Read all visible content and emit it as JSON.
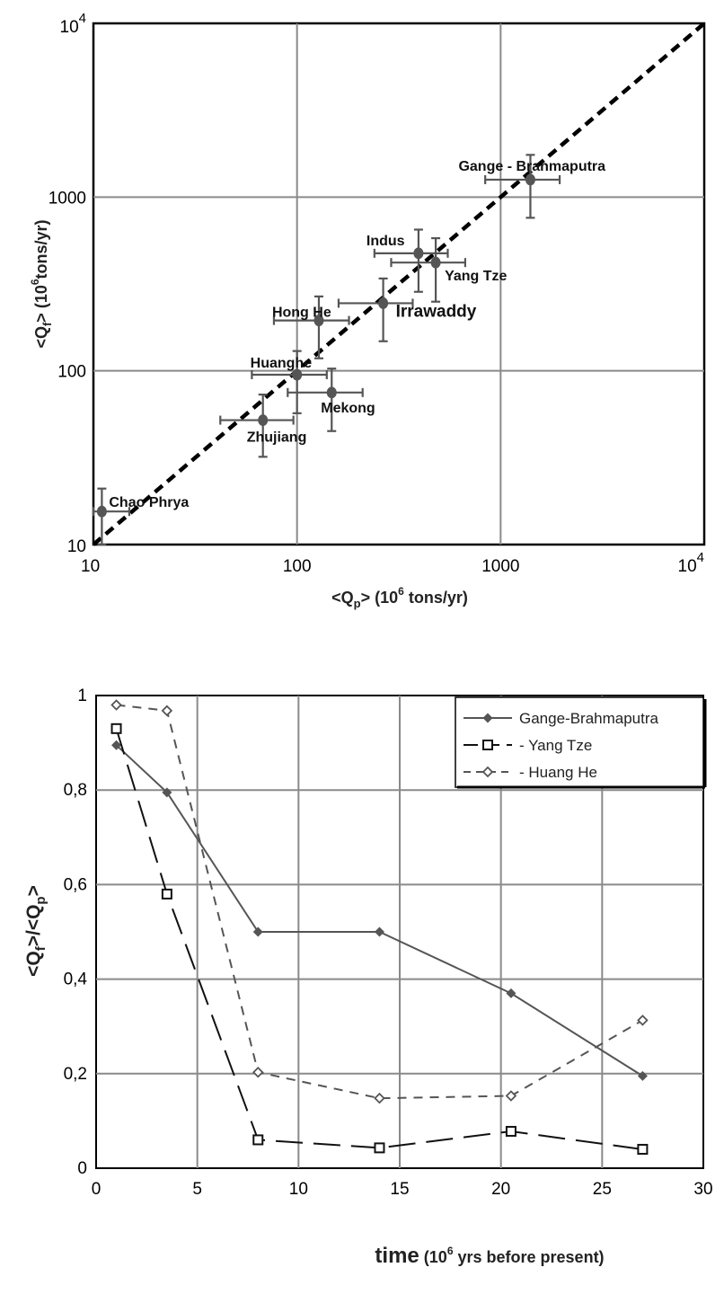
{
  "chart_data": [
    {
      "type": "scatter",
      "title": "",
      "xlabel": {
        "prefix": "<Q",
        "sub": "p",
        "mid": ">  (10",
        "sup": "6",
        "suffix": " tons/yr)"
      },
      "ylabel": {
        "prefix": "<Q",
        "sub": "f",
        "mid": ">  (10",
        "sup": "6",
        "suffix": "tons/yr)"
      },
      "xscale": "log",
      "yscale": "log",
      "xlim": [
        10,
        10000
      ],
      "ylim": [
        10,
        10000
      ],
      "grid": true,
      "x_ticks": [
        {
          "text": "10"
        },
        {
          "text": "100"
        },
        {
          "text": "1000"
        },
        {
          "text": "10",
          "sup": "4"
        }
      ],
      "y_ticks": [
        {
          "text": "10"
        },
        {
          "text": "100"
        },
        {
          "text": "1000"
        },
        {
          "text": "10",
          "sup": "4"
        }
      ],
      "reference_line": "y = x (dashed)",
      "points": [
        {
          "label": "Chao Phrya",
          "x": 11,
          "y": 15.5,
          "xerr": [
            10,
            15
          ],
          "yerr": [
            10,
            21
          ]
        },
        {
          "label": "Zhujiang",
          "x": 68,
          "y": 52,
          "xerr": [
            42,
            96
          ],
          "yerr": [
            32,
            73
          ]
        },
        {
          "label": "Huanghe",
          "x": 100,
          "y": 95,
          "xerr": [
            60,
            140
          ],
          "yerr": [
            57,
            130
          ]
        },
        {
          "label": "Mekong",
          "x": 148,
          "y": 75,
          "xerr": [
            90,
            210
          ],
          "yerr": [
            45,
            103
          ]
        },
        {
          "label": "Hong He",
          "x": 128,
          "y": 195,
          "xerr": [
            77,
            180
          ],
          "yerr": [
            118,
            268
          ]
        },
        {
          "label": "Irrawaddy",
          "x": 265,
          "y": 245,
          "xerr": [
            160,
            370
          ],
          "yerr": [
            148,
            340
          ]
        },
        {
          "label": "Indus",
          "x": 395,
          "y": 475,
          "xerr": [
            240,
            550
          ],
          "yerr": [
            285,
            650
          ]
        },
        {
          "label": "Yang Tze",
          "x": 480,
          "y": 420,
          "xerr": [
            290,
            670
          ],
          "yerr": [
            250,
            580
          ]
        },
        {
          "label": "Gange - Brahmaputra",
          "x": 1400,
          "y": 1260,
          "xerr": [
            840,
            1950
          ],
          "yerr": [
            760,
            1750
          ]
        }
      ]
    },
    {
      "type": "line",
      "title": "",
      "xlabel": {
        "main": "time",
        "small": " (10",
        "sup": "6",
        "suffix": " yrs before present)"
      },
      "ylabel": {
        "prefix": "<Q",
        "sub1": "f",
        "mid": ">/<Q",
        "sub2": "p",
        "suffix": ">"
      },
      "xlim": [
        0,
        30
      ],
      "ylim": [
        0,
        1
      ],
      "x_ticks": [
        "0",
        "5",
        "10",
        "15",
        "20",
        "25",
        "30"
      ],
      "y_ticks": [
        "0",
        "0,2",
        "0,4",
        "0,6",
        "0,8",
        "1"
      ],
      "grid": true,
      "legend_position": "top-right",
      "series": [
        {
          "name": "Gange-Brahmaputra",
          "marker": "diamond-filled",
          "dash": "solid",
          "color": "#555555",
          "points": [
            [
              1,
              0.895
            ],
            [
              3.5,
              0.795
            ],
            [
              8,
              0.5
            ],
            [
              14,
              0.5
            ],
            [
              20.5,
              0.37
            ],
            [
              27,
              0.195
            ]
          ]
        },
        {
          "name": "- Yang Tze",
          "marker": "square-open",
          "dash": "long-dash",
          "color": "#111111",
          "points": [
            [
              1,
              0.93
            ],
            [
              3.5,
              0.58
            ],
            [
              8,
              0.06
            ],
            [
              14,
              0.043
            ],
            [
              20.5,
              0.078
            ],
            [
              27,
              0.04
            ]
          ]
        },
        {
          "name": "- Huang He",
          "marker": "diamond-open",
          "dash": "short-dash",
          "color": "#555555",
          "points": [
            [
              1,
              0.98
            ],
            [
              3.5,
              0.968
            ],
            [
              8,
              0.203
            ],
            [
              14,
              0.148
            ],
            [
              20.5,
              0.153
            ],
            [
              27,
              0.313
            ]
          ]
        }
      ]
    }
  ]
}
